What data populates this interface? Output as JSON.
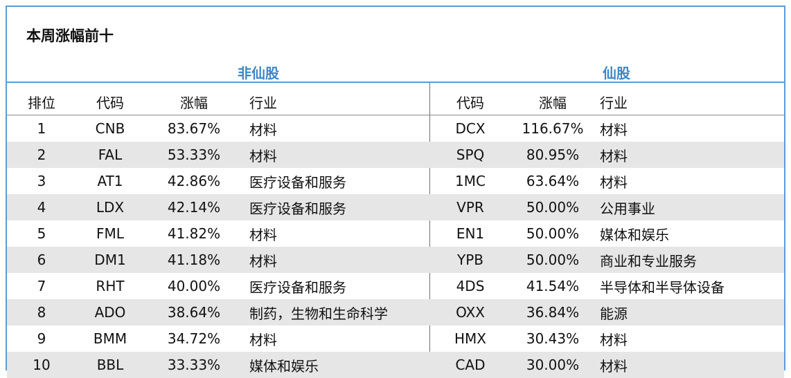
{
  "title": "本周涨幅前十",
  "groups": {
    "left": "非仙股",
    "right": "仙股"
  },
  "headers": {
    "rank": "排位",
    "code": "代码",
    "change": "涨幅",
    "industry": "行业",
    "code2": "代码",
    "change2": "涨幅",
    "industry2": "行业"
  },
  "rows": [
    {
      "rank": "1",
      "code": "CNB",
      "change": "83.67%",
      "industry": "材料",
      "code2": "DCX",
      "change2": "116.67%",
      "industry2": "材料"
    },
    {
      "rank": "2",
      "code": "FAL",
      "change": "53.33%",
      "industry": "材料",
      "code2": "SPQ",
      "change2": "80.95%",
      "industry2": "材料"
    },
    {
      "rank": "3",
      "code": "AT1",
      "change": "42.86%",
      "industry": "医疗设备和服务",
      "code2": "1MC",
      "change2": "63.64%",
      "industry2": "材料"
    },
    {
      "rank": "4",
      "code": "LDX",
      "change": "42.14%",
      "industry": "医疗设备和服务",
      "code2": "VPR",
      "change2": "50.00%",
      "industry2": "公用事业"
    },
    {
      "rank": "5",
      "code": "FML",
      "change": "41.82%",
      "industry": "材料",
      "code2": "EN1",
      "change2": "50.00%",
      "industry2": "媒体和娱乐"
    },
    {
      "rank": "6",
      "code": "DM1",
      "change": "41.18%",
      "industry": "材料",
      "code2": "YPB",
      "change2": "50.00%",
      "industry2": "商业和专业服务"
    },
    {
      "rank": "7",
      "code": "RHT",
      "change": "40.00%",
      "industry": "医疗设备和服务",
      "code2": "4DS",
      "change2": "41.54%",
      "industry2": "半导体和半导体设备"
    },
    {
      "rank": "8",
      "code": "ADO",
      "change": "38.64%",
      "industry": "制药，生物和生命科学",
      "code2": "OXX",
      "change2": "36.84%",
      "industry2": "能源"
    },
    {
      "rank": "9",
      "code": "BMM",
      "change": "34.72%",
      "industry": "材料",
      "code2": "HMX",
      "change2": "30.43%",
      "industry2": "材料"
    },
    {
      "rank": "10",
      "code": "BBL",
      "change": "33.33%",
      "industry": "媒体和娱乐",
      "code2": "CAD",
      "change2": "30.00%",
      "industry2": "材料"
    }
  ]
}
